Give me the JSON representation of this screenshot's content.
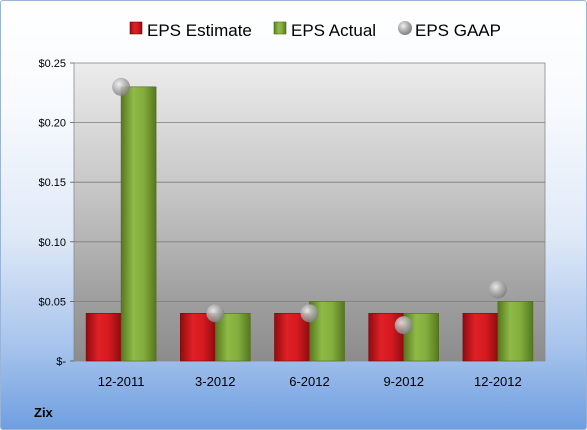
{
  "company": "Zix",
  "colors": {
    "estimate": "#c8141b",
    "actual": "#7aa33a",
    "gaap": "#a8a8a8"
  },
  "chart_data": {
    "type": "bar",
    "categories": [
      "12-2011",
      "3-2012",
      "6-2012",
      "9-2012",
      "12-2012"
    ],
    "series": [
      {
        "name": "EPS Estimate",
        "kind": "bar",
        "values": [
          0.04,
          0.04,
          0.04,
          0.04,
          0.04
        ]
      },
      {
        "name": "EPS Actual",
        "kind": "bar",
        "values": [
          0.23,
          0.04,
          0.05,
          0.04,
          0.05
        ]
      },
      {
        "name": "EPS GAAP",
        "kind": "marker",
        "values": [
          0.23,
          0.04,
          0.04,
          0.03,
          0.06
        ]
      }
    ],
    "ylim": [
      0,
      0.25
    ],
    "yticks": [
      0,
      0.05,
      0.1,
      0.15,
      0.2,
      0.25
    ],
    "ytick_labels": [
      "$-",
      "$0.05",
      "$0.10",
      "$0.15",
      "$0.20",
      "$0.25"
    ],
    "grid": true,
    "legend": "top"
  }
}
